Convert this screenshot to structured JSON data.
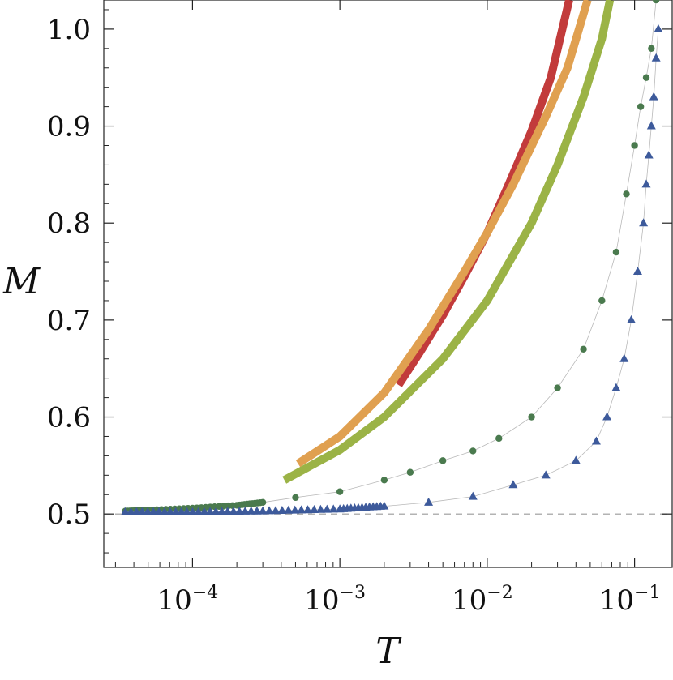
{
  "chart_data": {
    "type": "line",
    "title": "",
    "xlabel": "T",
    "ylabel": "M",
    "xscale": "log",
    "xlim": [
      2.5e-05,
      0.18
    ],
    "ylim": [
      0.445,
      1.03
    ],
    "x_ticks": [
      {
        "value": 0.0001,
        "base": "10",
        "exp": "−4"
      },
      {
        "value": 0.001,
        "base": "10",
        "exp": "−3"
      },
      {
        "value": 0.01,
        "base": "10",
        "exp": "−2"
      },
      {
        "value": 0.1,
        "base": "10",
        "exp": "−1"
      }
    ],
    "y_ticks": [
      "0.5",
      "0.6",
      "0.7",
      "0.8",
      "0.9",
      "1.0"
    ],
    "reference_line": {
      "y": 0.5,
      "style": "dashed",
      "color": "#9a9a9a"
    },
    "grid": false,
    "legend": "none",
    "series": [
      {
        "style": "thick-line",
        "color": "#c23b3b",
        "points": [
          [
            0.0025,
            0.633
          ],
          [
            0.0035,
            0.667
          ],
          [
            0.005,
            0.705
          ],
          [
            0.007,
            0.745
          ],
          [
            0.01,
            0.79
          ],
          [
            0.014,
            0.84
          ],
          [
            0.02,
            0.895
          ],
          [
            0.027,
            0.95
          ],
          [
            0.036,
            1.03
          ]
        ]
      },
      {
        "style": "thick-line",
        "color": "#e0a050",
        "points": [
          [
            0.00052,
            0.552
          ],
          [
            0.001,
            0.58
          ],
          [
            0.002,
            0.625
          ],
          [
            0.004,
            0.69
          ],
          [
            0.007,
            0.75
          ],
          [
            0.01,
            0.79
          ],
          [
            0.015,
            0.84
          ],
          [
            0.025,
            0.91
          ],
          [
            0.035,
            0.96
          ],
          [
            0.048,
            1.03
          ]
        ]
      },
      {
        "style": "thick-line",
        "color": "#9bb346",
        "points": [
          [
            0.00042,
            0.535
          ],
          [
            0.001,
            0.566
          ],
          [
            0.002,
            0.6
          ],
          [
            0.005,
            0.66
          ],
          [
            0.01,
            0.72
          ],
          [
            0.02,
            0.8
          ],
          [
            0.03,
            0.86
          ],
          [
            0.045,
            0.93
          ],
          [
            0.06,
            0.99
          ],
          [
            0.068,
            1.03
          ]
        ]
      },
      {
        "style": "dots-line",
        "marker": "circle",
        "color": "#4a7a4e",
        "points": [
          [
            3.5e-05,
            0.503
          ],
          [
            5e-05,
            0.504
          ],
          [
            0.0001,
            0.506
          ],
          [
            0.0002,
            0.509
          ],
          [
            0.0003,
            0.512
          ],
          [
            0.0005,
            0.517
          ],
          [
            0.001,
            0.523
          ],
          [
            0.002,
            0.535
          ],
          [
            0.003,
            0.543
          ],
          [
            0.005,
            0.555
          ],
          [
            0.008,
            0.565
          ],
          [
            0.012,
            0.578
          ],
          [
            0.02,
            0.6
          ],
          [
            0.03,
            0.63
          ],
          [
            0.045,
            0.67
          ],
          [
            0.06,
            0.72
          ],
          [
            0.075,
            0.77
          ],
          [
            0.088,
            0.83
          ],
          [
            0.1,
            0.88
          ],
          [
            0.11,
            0.92
          ],
          [
            0.12,
            0.95
          ],
          [
            0.13,
            0.98
          ],
          [
            0.14,
            1.03
          ]
        ]
      },
      {
        "style": "markers-line",
        "marker": "triangle",
        "color": "#3d5a9b",
        "points": [
          [
            3.5e-05,
            0.502
          ],
          [
            0.0001,
            0.502
          ],
          [
            0.0003,
            0.503
          ],
          [
            0.001,
            0.505
          ],
          [
            0.002,
            0.508
          ],
          [
            0.004,
            0.512
          ],
          [
            0.008,
            0.518
          ],
          [
            0.015,
            0.53
          ],
          [
            0.025,
            0.54
          ],
          [
            0.04,
            0.555
          ],
          [
            0.055,
            0.575
          ],
          [
            0.065,
            0.6
          ],
          [
            0.075,
            0.63
          ],
          [
            0.085,
            0.66
          ],
          [
            0.095,
            0.7
          ],
          [
            0.105,
            0.75
          ],
          [
            0.115,
            0.8
          ],
          [
            0.12,
            0.84
          ],
          [
            0.125,
            0.87
          ],
          [
            0.13,
            0.9
          ],
          [
            0.135,
            0.93
          ],
          [
            0.14,
            0.97
          ],
          [
            0.145,
            1.0
          ]
        ]
      }
    ]
  }
}
